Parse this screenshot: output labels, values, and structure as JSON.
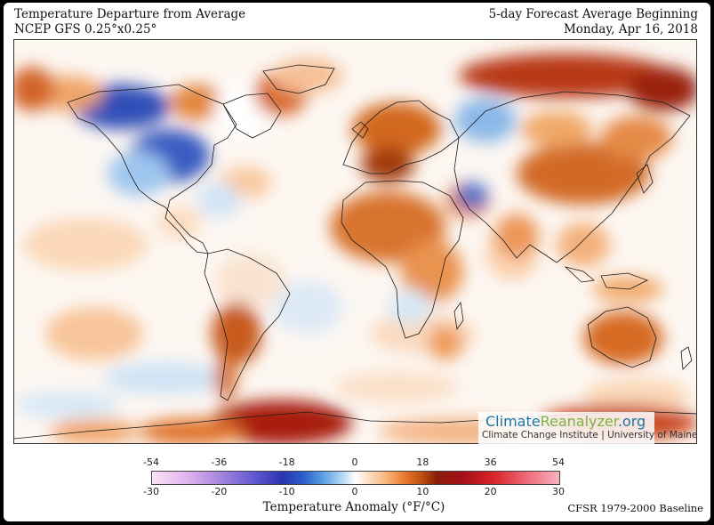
{
  "header": {
    "title_line1": "Temperature Departure from Average",
    "title_line2": "NCEP GFS 0.25°x0.25°",
    "period_line1": "5-day Forecast Average Beginning",
    "period_line2": "Monday, Apr 16, 2018"
  },
  "map": {
    "type": "global temperature anomaly",
    "projection": "equirectangular"
  },
  "watermark": {
    "brand_part1": "Climate",
    "brand_part2": "Reanalyzer",
    "brand_part3": ".org",
    "subtitle": "Climate Change Institute | University of Maine"
  },
  "colorbar": {
    "label": "Temperature Anomaly (°F/°C)",
    "fahrenheit_ticks": [
      "-54",
      "-36",
      "-18",
      "0",
      "18",
      "36",
      "54"
    ],
    "celsius_ticks": [
      "-30",
      "-20",
      "-10",
      "0",
      "10",
      "20",
      "30"
    ],
    "colors": {
      "cold_extreme": "#fbe2f7",
      "cold": "#2a33b0",
      "neutral": "#ffffff",
      "warm": "#e8792f",
      "hot": "#a50f17",
      "hot_extreme": "#f7b3c0"
    }
  },
  "baseline": "CFSR 1979-2000 Baseline"
}
